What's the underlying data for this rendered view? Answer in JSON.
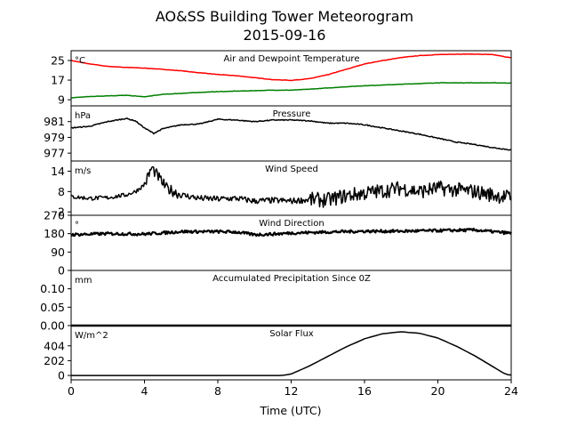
{
  "figure": {
    "title": "AO&SS Building Tower Meteorogram",
    "subtitle": "2015-09-16",
    "xlabel": "Time (UTC)",
    "xlim": [
      0,
      24
    ],
    "xticks": [
      0,
      4,
      8,
      12,
      16,
      20,
      24
    ]
  },
  "chart_data": [
    {
      "type": "line",
      "title": "Air and Dewpoint Temperature",
      "unit": "°C",
      "ylim": [
        6.5,
        29
      ],
      "yticks": [
        9,
        17,
        25
      ],
      "grid": false,
      "series": [
        {
          "color": "#ff0000",
          "x": [
            0,
            1,
            2,
            3,
            4,
            5,
            6,
            7,
            8,
            9,
            10,
            11,
            12,
            13,
            14,
            15,
            16,
            17,
            18,
            19,
            20,
            21,
            22,
            23,
            24
          ],
          "y": [
            25,
            23.6,
            22.6,
            22.2,
            21.9,
            21.4,
            20.8,
            20.0,
            19.3,
            18.8,
            18.0,
            17.2,
            16.9,
            17.6,
            19.2,
            21.4,
            23.6,
            25.0,
            26.2,
            27.0,
            27.4,
            27.6,
            27.6,
            27.4,
            26.1
          ]
        },
        {
          "color": "#008000",
          "x": [
            0,
            1,
            2,
            3,
            4,
            5,
            6,
            7,
            8,
            9,
            10,
            11,
            12,
            13,
            14,
            15,
            16,
            17,
            18,
            19,
            20,
            21,
            22,
            23,
            24
          ],
          "y": [
            9.8,
            10.3,
            10.6,
            10.8,
            10.2,
            11.2,
            11.6,
            12.0,
            12.3,
            12.5,
            12.7,
            12.9,
            12.9,
            13.3,
            13.8,
            14.3,
            14.7,
            15.0,
            15.3,
            15.6,
            15.9,
            15.9,
            15.9,
            15.9,
            15.8
          ]
        }
      ]
    },
    {
      "type": "line",
      "title": "Pressure",
      "unit": "hPa",
      "ylim": [
        976,
        983
      ],
      "yticks": [
        977,
        979,
        981
      ],
      "grid": false,
      "series": [
        {
          "color": "#000000",
          "x": [
            0,
            1,
            2,
            3,
            3.5,
            4,
            4.5,
            5,
            6,
            7,
            8,
            9,
            10,
            11,
            12,
            13,
            14,
            15,
            16,
            17,
            18,
            19,
            20,
            21,
            22,
            23,
            24
          ],
          "y": [
            980.2,
            980.4,
            981.0,
            981.4,
            981.1,
            980.2,
            979.5,
            980.1,
            980.6,
            980.7,
            981.3,
            981.2,
            981.0,
            981.2,
            981.2,
            981.1,
            980.8,
            980.8,
            980.6,
            980.2,
            979.8,
            979.4,
            978.9,
            978.4,
            978.1,
            977.7,
            977.4
          ]
        }
      ]
    },
    {
      "type": "line",
      "title": "Wind Speed",
      "unit": "m/s",
      "ylim": [
        1,
        17
      ],
      "yticks": [
        2,
        8,
        14
      ],
      "grid": false,
      "series": [
        {
          "color": "#000000",
          "x": [
            0,
            1,
            2,
            3,
            3.5,
            4,
            4.4,
            4.8,
            5.2,
            6,
            7,
            8,
            9,
            10,
            11,
            12,
            13,
            14,
            15,
            16,
            17,
            18,
            19,
            20,
            21,
            22,
            23,
            24
          ],
          "y": [
            6.5,
            6.0,
            6.2,
            7.0,
            8.0,
            10.0,
            15.0,
            12.0,
            9.0,
            7.0,
            6.0,
            5.8,
            6.0,
            5.2,
            5.4,
            5.2,
            5.6,
            5.5,
            6.8,
            7.5,
            8.2,
            9.0,
            8.0,
            9.0,
            8.5,
            8.0,
            7.0,
            6.2
          ]
        }
      ]
    },
    {
      "type": "line",
      "title": "Wind Direction",
      "unit": "°",
      "ylim": [
        0,
        270
      ],
      "yticks": [
        0,
        90,
        180,
        270
      ],
      "grid": false,
      "series": [
        {
          "color": "#000000",
          "x": [
            0,
            2,
            4,
            6,
            8,
            9,
            10,
            11,
            12,
            14,
            16,
            18,
            20,
            22,
            24
          ],
          "y": [
            175,
            180,
            178,
            190,
            190,
            188,
            175,
            178,
            183,
            188,
            192,
            192,
            195,
            198,
            182
          ]
        }
      ]
    },
    {
      "type": "line",
      "title": "Accumulated Precipitation Since 0Z",
      "unit": "mm",
      "ylim": [
        0,
        0.15
      ],
      "yticks": [
        0.0,
        0.05,
        0.1
      ],
      "grid": false,
      "series": [
        {
          "color": "#000000",
          "x": [
            0,
            24
          ],
          "y": [
            0,
            0
          ]
        }
      ]
    },
    {
      "type": "line",
      "title": "Solar Flux",
      "unit": "W/m^2",
      "ylim": [
        -60,
        680
      ],
      "yticks": [
        0,
        202,
        404
      ],
      "grid": false,
      "series": [
        {
          "color": "#000000",
          "x": [
            0,
            11.5,
            12,
            13,
            14,
            15,
            16,
            17,
            18,
            19,
            20,
            21,
            22,
            23,
            23.7,
            24
          ],
          "y": [
            0,
            0,
            20,
            130,
            260,
            390,
            500,
            570,
            595,
            575,
            510,
            400,
            270,
            120,
            15,
            5
          ]
        }
      ]
    }
  ]
}
